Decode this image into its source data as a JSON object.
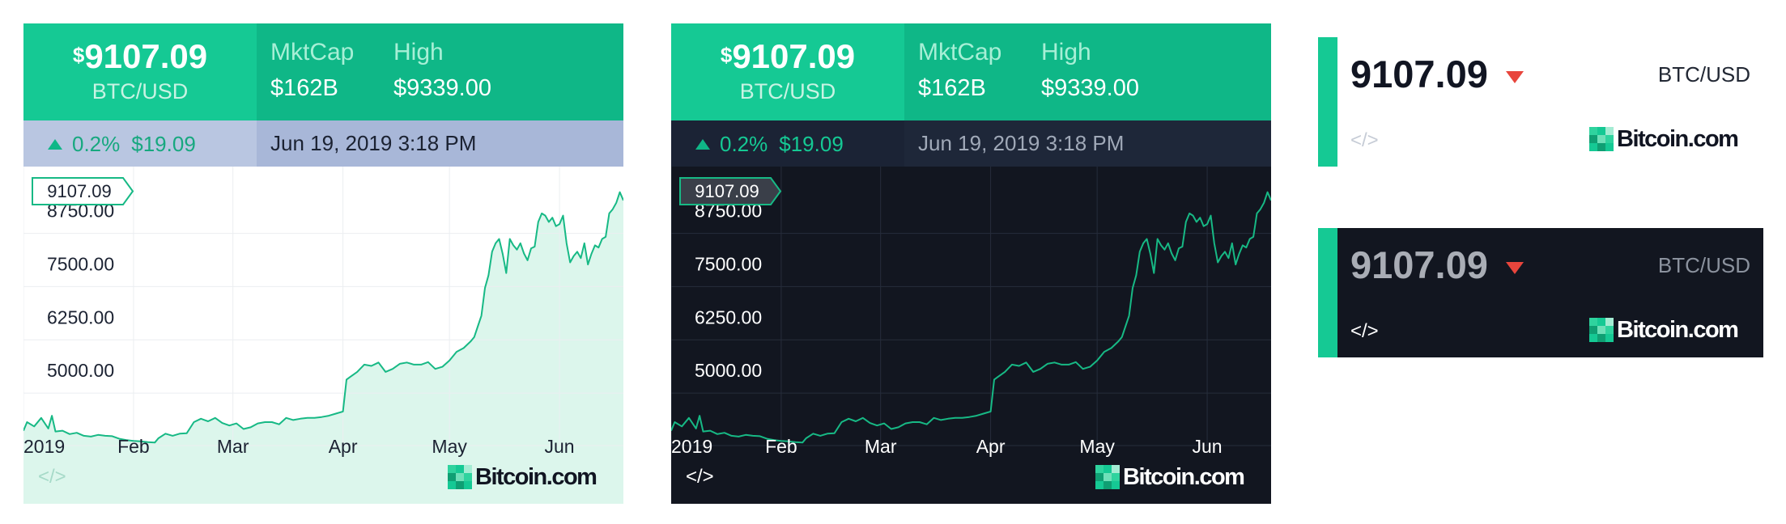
{
  "widget": {
    "price": "9107.09",
    "currency_symbol": "$",
    "pair": "BTC/USD",
    "mktcap_label": "MktCap",
    "mktcap_value": "$162B",
    "high_label": "High",
    "high_value": "$9339.00",
    "change_pct": "0.2%",
    "change_amt": "$19.09",
    "datetime": "Jun 19, 2019 3:18 PM",
    "code_label": "</>",
    "brand": "Bitcoin.com"
  },
  "ticker": {
    "price": "9107.09",
    "pair": "BTC/USD",
    "code_label": "</>",
    "brand": "Bitcoin.com"
  },
  "colors": {
    "accent": "#15c994",
    "accent_dark": "#0fb787",
    "line": "#17b985",
    "area": "#dcf6ec",
    "down": "#e8453c",
    "dark_bg": "#121620"
  },
  "chart_data": {
    "type": "area",
    "x_tick_labels": [
      "2019",
      "Feb",
      "Mar",
      "Apr",
      "May",
      "Jun"
    ],
    "y_tick_labels": [
      "5000.00",
      "6250.00",
      "7500.00",
      "8750.00"
    ],
    "y_ticks": [
      5000,
      6250,
      7500,
      8750
    ],
    "ylim": [
      3350,
      9900
    ],
    "current_value_label": "9107.09",
    "current_value": 9107.09,
    "grid": true,
    "x_start": "2019-01-01",
    "x_end": "2019-06-19",
    "x_ticks": [
      "2019-01-01",
      "2019-02-01",
      "2019-03-01",
      "2019-04-01",
      "2019-05-01",
      "2019-06-01"
    ],
    "x": [
      "2019-01-01",
      "2019-01-02",
      "2019-01-04",
      "2019-01-06",
      "2019-01-08",
      "2019-01-09",
      "2019-01-10",
      "2019-01-12",
      "2019-01-14",
      "2019-01-16",
      "2019-01-18",
      "2019-01-20",
      "2019-01-22",
      "2019-01-24",
      "2019-01-26",
      "2019-01-28",
      "2019-01-30",
      "2019-02-01",
      "2019-02-03",
      "2019-02-05",
      "2019-02-07",
      "2019-02-08",
      "2019-02-10",
      "2019-02-12",
      "2019-02-14",
      "2019-02-16",
      "2019-02-18",
      "2019-02-20",
      "2019-02-22",
      "2019-02-24",
      "2019-02-26",
      "2019-02-28",
      "2019-03-02",
      "2019-03-04",
      "2019-03-06",
      "2019-03-08",
      "2019-03-10",
      "2019-03-12",
      "2019-03-14",
      "2019-03-16",
      "2019-03-18",
      "2019-03-20",
      "2019-03-22",
      "2019-03-24",
      "2019-03-26",
      "2019-03-28",
      "2019-03-30",
      "2019-04-01",
      "2019-04-02",
      "2019-04-03",
      "2019-04-05",
      "2019-04-07",
      "2019-04-09",
      "2019-04-11",
      "2019-04-13",
      "2019-04-15",
      "2019-04-17",
      "2019-04-19",
      "2019-04-21",
      "2019-04-23",
      "2019-04-25",
      "2019-04-27",
      "2019-04-29",
      "2019-05-01",
      "2019-05-03",
      "2019-05-05",
      "2019-05-07",
      "2019-05-08",
      "2019-05-09",
      "2019-05-10",
      "2019-05-11",
      "2019-05-12",
      "2019-05-13",
      "2019-05-14",
      "2019-05-15",
      "2019-05-16",
      "2019-05-17",
      "2019-05-18",
      "2019-05-19",
      "2019-05-20",
      "2019-05-21",
      "2019-05-22",
      "2019-05-23",
      "2019-05-24",
      "2019-05-25",
      "2019-05-26",
      "2019-05-27",
      "2019-05-28",
      "2019-05-29",
      "2019-05-30",
      "2019-05-31",
      "2019-06-01",
      "2019-06-02",
      "2019-06-03",
      "2019-06-04",
      "2019-06-05",
      "2019-06-06",
      "2019-06-07",
      "2019-06-08",
      "2019-06-09",
      "2019-06-10",
      "2019-06-11",
      "2019-06-12",
      "2019-06-13",
      "2019-06-14",
      "2019-06-15",
      "2019-06-16",
      "2019-06-17",
      "2019-06-18",
      "2019-06-19"
    ],
    "y": [
      3700,
      3900,
      3800,
      4000,
      3750,
      4050,
      3680,
      3700,
      3620,
      3650,
      3580,
      3560,
      3600,
      3580,
      3570,
      3510,
      3480,
      3460,
      3450,
      3430,
      3420,
      3520,
      3630,
      3580,
      3630,
      3640,
      3900,
      3980,
      3920,
      4000,
      3880,
      3820,
      3870,
      3740,
      3780,
      3870,
      3900,
      3900,
      3850,
      4000,
      3950,
      3980,
      4000,
      4000,
      4020,
      4050,
      4100,
      4150,
      4900,
      4960,
      5080,
      5250,
      5220,
      5300,
      5080,
      5150,
      5270,
      5300,
      5250,
      5250,
      5310,
      5150,
      5200,
      5350,
      5550,
      5640,
      5800,
      5900,
      6150,
      6400,
      7050,
      7350,
      7900,
      8100,
      8200,
      7850,
      7400,
      8200,
      8050,
      7950,
      8100,
      7860,
      7700,
      7980,
      8020,
      8600,
      8800,
      8750,
      8600,
      8700,
      8500,
      8550,
      8750,
      8100,
      7650,
      7800,
      7900,
      7750,
      8100,
      7600,
      7850,
      8050,
      8000,
      8200,
      8250,
      8800,
      8900,
      9050,
      9300,
      9107.09
    ]
  }
}
